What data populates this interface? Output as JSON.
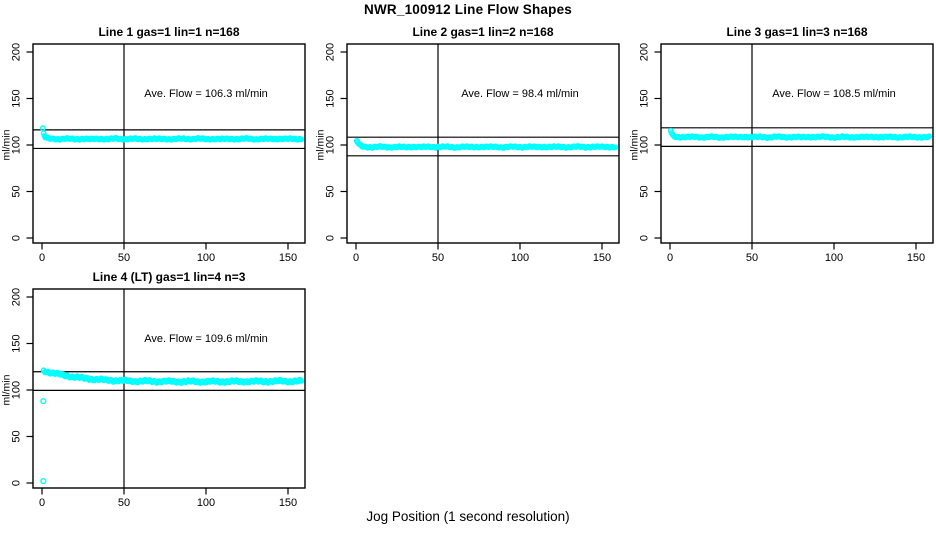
{
  "page": {
    "title": "NWR_100912  Line Flow Shapes",
    "xlabel": "Jog Position (1 second resolution)"
  },
  "style": {
    "point_color": "#00ffff",
    "axis_color": "#000000",
    "background": "#ffffff"
  },
  "axes": {
    "ylabel": "ml/min",
    "y_ticks": [
      0,
      50,
      100,
      150,
      200
    ],
    "x_ticks": [
      0,
      50,
      100,
      150
    ]
  },
  "chart_data": [
    {
      "type": "scatter",
      "title": "Line 1 gas=1 lin=1 n=168",
      "annotation": "Ave. Flow =  106.3  ml/min",
      "ave_flow_ml_min": 106.3,
      "ylabel": "ml/min",
      "xlabel": "Jog Position (1 second resolution)",
      "xlim": [
        -5,
        160
      ],
      "ylim": [
        -5,
        209
      ],
      "grid": false,
      "legend": false,
      "ref_lines_h": [
        116.3,
        96.3
      ],
      "ref_lines_v": [
        50
      ],
      "jitter": 0.9,
      "series": [
        {
          "name": "flow",
          "mode": "band",
          "points": [
            [
              0.5,
              117.5
            ],
            [
              1,
              112
            ],
            [
              1.5,
              109.6
            ],
            [
              2,
              108.4
            ],
            [
              3,
              107.3
            ],
            [
              4,
              106.9
            ],
            [
              5,
              106.7
            ],
            [
              10,
              106.4
            ],
            [
              15,
              106.8
            ],
            [
              20,
              106.3
            ],
            [
              25,
              106.7
            ],
            [
              30,
              106.2
            ],
            [
              35,
              106.7
            ],
            [
              40,
              106.3
            ],
            [
              45,
              106.8
            ],
            [
              50,
              106.4
            ],
            [
              55,
              106.7
            ],
            [
              60,
              106.2
            ],
            [
              65,
              106.8
            ],
            [
              70,
              106.4
            ],
            [
              75,
              106.6
            ],
            [
              80,
              106.2
            ],
            [
              85,
              106.8
            ],
            [
              90,
              106.5
            ],
            [
              95,
              106.8
            ],
            [
              100,
              106.3
            ],
            [
              105,
              106.6
            ],
            [
              110,
              106.2
            ],
            [
              115,
              106.7
            ],
            [
              120,
              106.4
            ],
            [
              125,
              106.8
            ],
            [
              130,
              106.3
            ],
            [
              135,
              106.6
            ],
            [
              140,
              106.4
            ],
            [
              145,
              106.7
            ],
            [
              150,
              106.5
            ],
            [
              158,
              106.5
            ]
          ]
        }
      ]
    },
    {
      "type": "scatter",
      "title": "Line 2 gas=1 lin=2 n=168",
      "annotation": "Ave. Flow =  98.4  ml/min",
      "ave_flow_ml_min": 98.4,
      "ylabel": "ml/min",
      "xlabel": "Jog Position (1 second resolution)",
      "xlim": [
        -5,
        160
      ],
      "ylim": [
        -5,
        209
      ],
      "grid": false,
      "legend": false,
      "ref_lines_h": [
        108.4,
        88.4
      ],
      "ref_lines_v": [
        50
      ],
      "jitter": 0.9,
      "series": [
        {
          "name": "flow",
          "mode": "band",
          "points": [
            [
              0.5,
              104.2
            ],
            [
              1,
              103.1
            ],
            [
              1.5,
              101.6
            ],
            [
              2,
              100.4
            ],
            [
              3,
              99
            ],
            [
              4,
              98.4
            ],
            [
              5,
              98.1
            ],
            [
              10,
              97.7
            ],
            [
              15,
              98.1
            ],
            [
              20,
              97.6
            ],
            [
              25,
              98
            ],
            [
              30,
              97.6
            ],
            [
              35,
              98.1
            ],
            [
              40,
              97.7
            ],
            [
              45,
              98.1
            ],
            [
              50,
              97.8
            ],
            [
              55,
              98
            ],
            [
              60,
              97.6
            ],
            [
              65,
              98.1
            ],
            [
              70,
              97.7
            ],
            [
              75,
              98.1
            ],
            [
              80,
              97.8
            ],
            [
              85,
              98
            ],
            [
              90,
              97.6
            ],
            [
              95,
              98
            ],
            [
              100,
              97.8
            ],
            [
              105,
              98.1
            ],
            [
              110,
              97.7
            ],
            [
              115,
              98.1
            ],
            [
              120,
              97.8
            ],
            [
              125,
              98
            ],
            [
              130,
              97.7
            ],
            [
              135,
              98.1
            ],
            [
              140,
              97.8
            ],
            [
              145,
              98.1
            ],
            [
              150,
              97.9
            ],
            [
              158,
              97.9
            ]
          ]
        }
      ]
    },
    {
      "type": "scatter",
      "title": "Line 3 gas=1 lin=3 n=168",
      "annotation": "Ave. Flow =  108.5  ml/min",
      "ave_flow_ml_min": 108.5,
      "ylabel": "ml/min",
      "xlabel": "Jog Position (1 second resolution)",
      "xlim": [
        -5,
        160
      ],
      "ylim": [
        -5,
        209
      ],
      "grid": false,
      "legend": false,
      "ref_lines_h": [
        118.5,
        98.5
      ],
      "ref_lines_v": [
        50
      ],
      "jitter": 0.9,
      "series": [
        {
          "name": "flow",
          "mode": "band",
          "points": [
            [
              0.5,
              115.5
            ],
            [
              1,
              112.6
            ],
            [
              1.5,
              110.9
            ],
            [
              2,
              109.9
            ],
            [
              3,
              109.1
            ],
            [
              4,
              108.8
            ],
            [
              5,
              108.7
            ],
            [
              10,
              108.4
            ],
            [
              15,
              108.8
            ],
            [
              20,
              108.3
            ],
            [
              25,
              108.7
            ],
            [
              30,
              108.2
            ],
            [
              35,
              108.7
            ],
            [
              40,
              108.4
            ],
            [
              45,
              108.8
            ],
            [
              50,
              108.4
            ],
            [
              55,
              108.7
            ],
            [
              60,
              108.3
            ],
            [
              65,
              108.8
            ],
            [
              70,
              108.4
            ],
            [
              75,
              108.7
            ],
            [
              80,
              108.3
            ],
            [
              85,
              108.8
            ],
            [
              90,
              108.5
            ],
            [
              95,
              108.8
            ],
            [
              100,
              108.3
            ],
            [
              105,
              108.6
            ],
            [
              110,
              108.3
            ],
            [
              115,
              108.7
            ],
            [
              120,
              108.4
            ],
            [
              125,
              108.8
            ],
            [
              130,
              108.4
            ],
            [
              135,
              108.6
            ],
            [
              140,
              108.4
            ],
            [
              145,
              108.7
            ],
            [
              150,
              108.5
            ],
            [
              158,
              108.5
            ]
          ]
        }
      ]
    },
    {
      "type": "scatter",
      "title": "Line 4 (LT) gas=1 lin=4 n=3",
      "annotation": "Ave. Flow =  109.6  ml/min",
      "ave_flow_ml_min": 109.6,
      "ylabel": "ml/min",
      "xlabel": "Jog Position (1 second resolution)",
      "xlim": [
        -5,
        160
      ],
      "ylim": [
        -5,
        209
      ],
      "grid": false,
      "legend": false,
      "ref_lines_h": [
        119.6,
        99.6
      ],
      "ref_lines_v": [
        50
      ],
      "jitter": 1.6,
      "series": [
        {
          "name": "flow",
          "mode": "band",
          "points": [
            [
              1,
              120.6
            ],
            [
              2,
              120.1
            ],
            [
              3,
              119.7
            ],
            [
              4,
              119.3
            ],
            [
              5,
              118.9
            ],
            [
              6,
              118.5
            ],
            [
              8,
              117.7
            ],
            [
              10,
              117
            ],
            [
              12,
              116.3
            ],
            [
              14,
              115.6
            ],
            [
              16,
              115
            ],
            [
              18,
              114.4
            ],
            [
              20,
              113.9
            ],
            [
              23,
              113.2
            ],
            [
              26,
              112.6
            ],
            [
              30,
              111.9
            ],
            [
              34,
              111.3
            ],
            [
              38,
              110.8
            ],
            [
              42,
              110.4
            ],
            [
              46,
              110.1
            ],
            [
              50,
              109.9
            ],
            [
              55,
              109.7
            ],
            [
              60,
              109.5
            ],
            [
              65,
              109.4
            ],
            [
              70,
              109.3
            ],
            [
              75,
              109.2
            ],
            [
              80,
              109.1
            ],
            [
              85,
              109.1
            ],
            [
              90,
              109.1
            ],
            [
              95,
              109
            ],
            [
              100,
              109.1
            ],
            [
              105,
              109
            ],
            [
              110,
              109.1
            ],
            [
              115,
              109.2
            ],
            [
              120,
              109.1
            ],
            [
              125,
              109.3
            ],
            [
              130,
              109.2
            ],
            [
              135,
              109.4
            ],
            [
              140,
              109.3
            ],
            [
              145,
              109.5
            ],
            [
              150,
              109.4
            ],
            [
              158,
              109.5
            ]
          ]
        },
        {
          "name": "startup-outliers",
          "mode": "points",
          "points": [
            [
              0.8,
              88
            ],
            [
              0.8,
              2
            ]
          ]
        }
      ]
    }
  ]
}
